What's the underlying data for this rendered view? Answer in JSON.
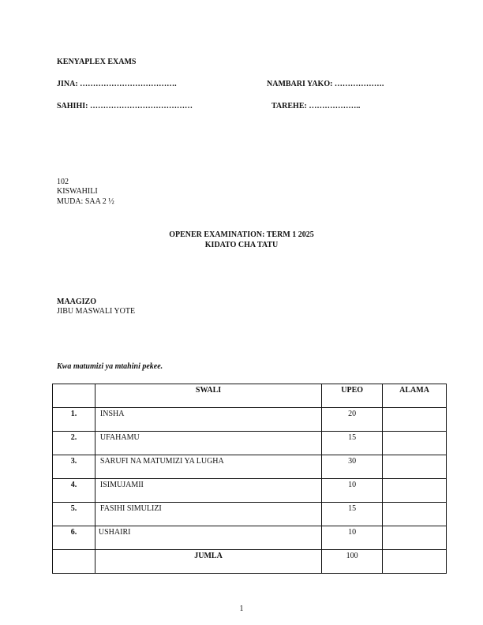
{
  "header": {
    "brand": "KENYAPLEX EXAMS",
    "name_field": "JINA: ……………………………….",
    "number_field": "NAMBARI YAKO: ……………….",
    "signature_field": "SAHIHI: …………………………………",
    "date_field": "TAREHE: ……………….."
  },
  "paper": {
    "code": "102",
    "subject": "KISWAHILI",
    "duration": "MUDA: SAA 2 ½"
  },
  "title": {
    "line1": "OPENER EXAMINATION: TERM 1 2025",
    "line2": "KIDATO CHA TATU"
  },
  "instructions": {
    "heading": "MAAGIZO",
    "text": "JIBU MASWALI YOTE"
  },
  "examiner_note": "Kwa matumizi ya mtahini pekee.",
  "table": {
    "headers": [
      "",
      "SWALI",
      "UPEO",
      "ALAMA"
    ],
    "rows": [
      {
        "no": "1.",
        "swali": "INSHA",
        "upeo": "20",
        "alama": ""
      },
      {
        "no": "2.",
        "swali": "UFAHAMU",
        "upeo": "15",
        "alama": ""
      },
      {
        "no": "3.",
        "swali": "SARUFI NA MATUMIZI YA LUGHA",
        "upeo": "30",
        "alama": ""
      },
      {
        "no": "4.",
        "swali": "ISIMUJAMII",
        "upeo": "10",
        "alama": ""
      },
      {
        "no": "5.",
        "swali": "FASIHI SIMULIZI",
        "upeo": "15",
        "alama": ""
      },
      {
        "no": "6.",
        "swali": "USHAIRI",
        "upeo": "10",
        "alama": ""
      }
    ],
    "total": {
      "label": "JUMLA",
      "upeo": "100",
      "alama": ""
    }
  },
  "page_number": "1"
}
